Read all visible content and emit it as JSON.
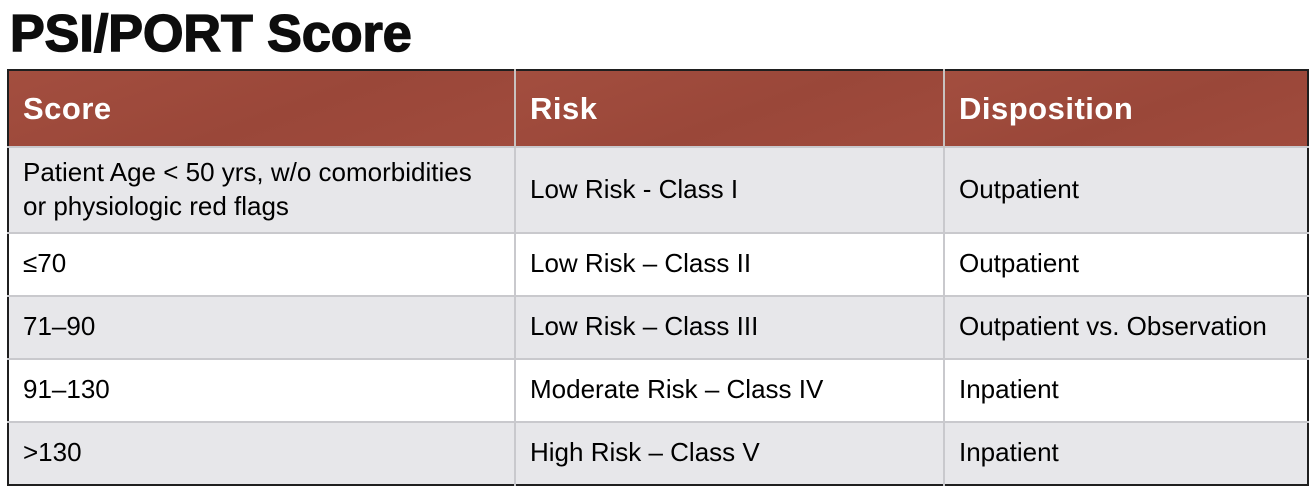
{
  "page_title": "PSI/PORT Score",
  "table": {
    "columns": [
      {
        "label": "Score"
      },
      {
        "label": "Risk"
      },
      {
        "label": "Disposition"
      }
    ],
    "rows": [
      {
        "score": "Patient Age < 50 yrs, w/o comorbidities or physiologic red flags",
        "risk": "Low Risk - Class I",
        "disposition": "Outpatient"
      },
      {
        "score": "≤70",
        "risk": "Low Risk – Class II",
        "disposition": "Outpatient"
      },
      {
        "score": "71–90",
        "risk": "Low Risk – Class III",
        "disposition": "Outpatient vs. Observation"
      },
      {
        "score": "91–130",
        "risk": "Moderate Risk – Class IV",
        "disposition": "Inpatient"
      },
      {
        "score": ">130",
        "risk": "High Risk – Class V",
        "disposition": "Inpatient"
      }
    ],
    "colors": {
      "header_bg": "#9E4A3C",
      "header_text": "#FFFFFF",
      "row_alt_bg": "#E7E7EA",
      "row_bg": "#FFFFFF",
      "grid_line": "#C9C9CD",
      "outer_border": "#1F1F1F",
      "body_text": "#000000"
    }
  }
}
